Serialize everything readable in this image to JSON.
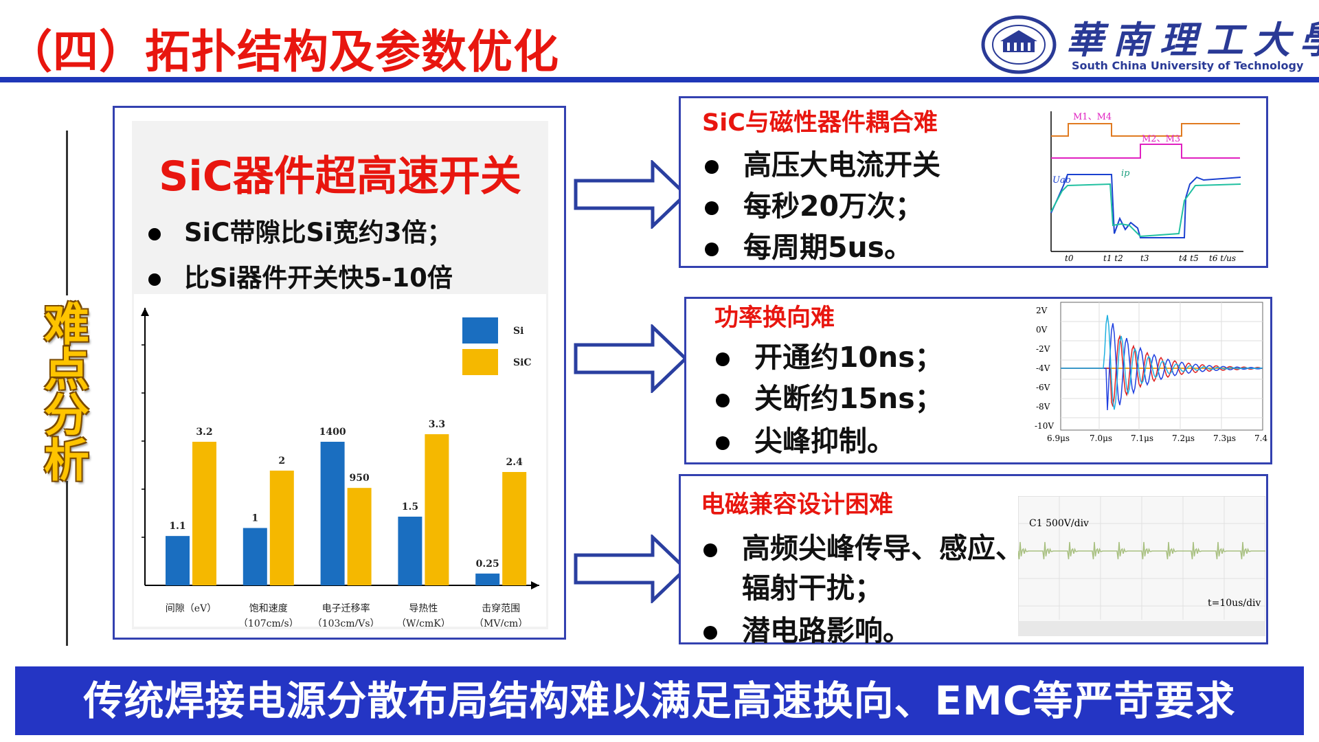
{
  "header": {
    "title": "（四）拓扑结构及参数优化",
    "logo_cn": "華南理工大學",
    "logo_en": "South China University of Technology",
    "accent": "#1f37b8"
  },
  "side_label": "难点分析",
  "left": {
    "title": "SiC器件超高速开关",
    "bullets": [
      "SiC带隙比Si宽约3倍；",
      "比Si器件开关快5-10倍"
    ]
  },
  "chart_data": {
    "type": "bar",
    "categories": [
      "间隙（eV）",
      "饱和速度（107cm/s）",
      "电子迁移率（103cm/Vs）",
      "导热性（W/cmK）",
      "击穿范围（MV/cm）"
    ],
    "category_lines": [
      [
        "间隙（eV）"
      ],
      [
        "饱和速度",
        "（107cm/s）"
      ],
      [
        "电子迁移率",
        "（103cm/Vs）"
      ],
      [
        "导热性",
        "（W/cmK）"
      ],
      [
        "击穿范围",
        "（MV/cm）"
      ]
    ],
    "series": [
      {
        "name": "Si",
        "values": [
          1.1,
          1,
          1400,
          1.5,
          0.25
        ],
        "labels": [
          "1.1",
          "1",
          "1400",
          "1.5",
          "0.25"
        ],
        "color": "#1a6ec0"
      },
      {
        "name": "SiC",
        "values": [
          3.2,
          2,
          950,
          3.3,
          2.4
        ],
        "labels": [
          "3.2",
          "2",
          "950",
          "3.3",
          "2.4"
        ],
        "color": "#f5b800"
      }
    ],
    "legend": "top-right"
  },
  "panels": [
    {
      "title": "SiC与磁性器件耦合难",
      "bullets": [
        "高压大电流开关",
        "每秒20万次；",
        "每周期5us。"
      ],
      "figure": {
        "labels": [
          "M1、M4",
          "M2、M3",
          "Uab",
          "ip"
        ],
        "xticks": [
          "t0",
          "t1 t2",
          "t3",
          "t4 t5",
          "t6  t/us"
        ]
      }
    },
    {
      "title": "功率换向难",
      "bullets": [
        "开通约10ns；",
        "关断约15ns；",
        "尖峰抑制。"
      ],
      "figure": {
        "yticks": [
          "2V",
          "0V",
          "-2V",
          "-4V",
          "-6V",
          "-8V",
          "-10V"
        ],
        "xticks": [
          "6.9μs",
          "7.0μs",
          "7.1μs",
          "7.2μs",
          "7.3μs",
          "7.4"
        ]
      }
    },
    {
      "title": "电磁兼容设计困难",
      "bullets": [
        "高频尖峰传导、感应、",
        "辐射干扰；",
        "潜电路影响。"
      ],
      "figure": {
        "label_ch": "C1  500V/div",
        "label_time": "t=10us/div"
      }
    }
  ],
  "banner": "传统焊接电源分散布局结构难以满足高速换向、EMC等严苛要求"
}
